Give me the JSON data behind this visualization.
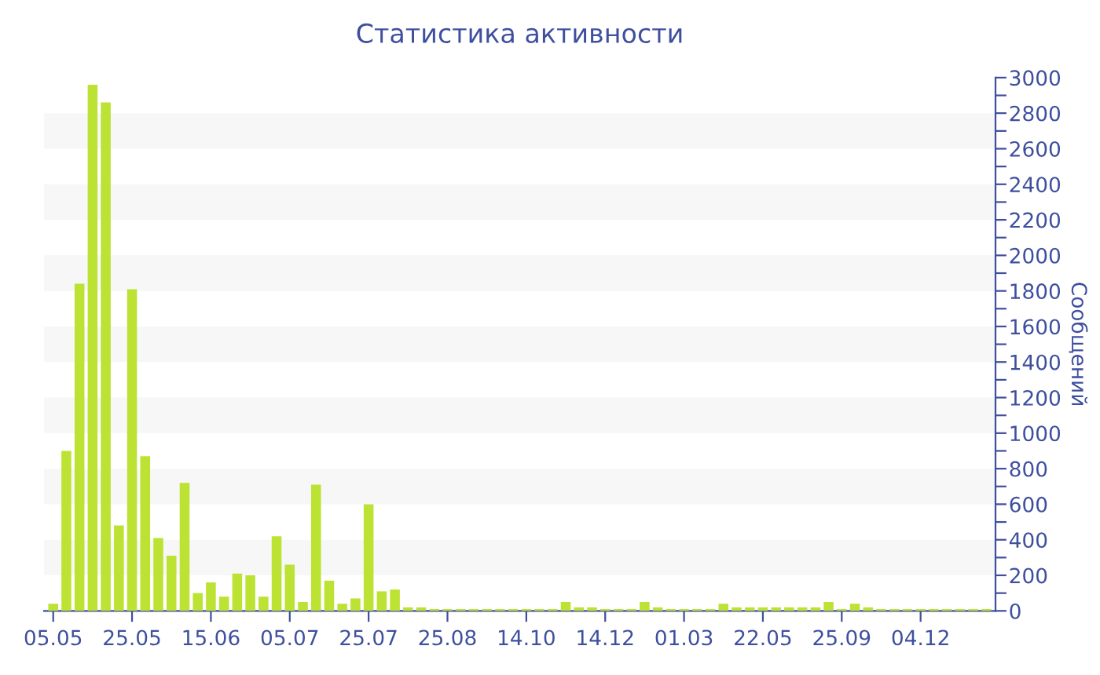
{
  "chart_data": {
    "type": "bar",
    "title": "Статистика активности",
    "ylabel": "Сообщений",
    "categories": [
      "05.05",
      null,
      null,
      null,
      null,
      null,
      "25.05",
      null,
      null,
      null,
      null,
      null,
      "15.06",
      null,
      null,
      null,
      null,
      null,
      "05.07",
      null,
      null,
      null,
      null,
      null,
      "25.07",
      null,
      null,
      null,
      null,
      null,
      "25.08",
      null,
      null,
      null,
      null,
      null,
      "14.10",
      null,
      null,
      null,
      null,
      null,
      "14.12",
      null,
      null,
      null,
      null,
      null,
      "01.03",
      null,
      null,
      null,
      null,
      null,
      "22.05",
      null,
      null,
      null,
      null,
      null,
      "25.09",
      null,
      null,
      null,
      null,
      null,
      "04.12",
      null,
      null,
      null,
      null,
      null
    ],
    "series": [
      {
        "color": "#bce234",
        "values": [
          40,
          900,
          1840,
          2960,
          2860,
          480,
          1810,
          870,
          410,
          310,
          720,
          100,
          160,
          80,
          210,
          200,
          80,
          420,
          260,
          50,
          710,
          170,
          40,
          70,
          600,
          110,
          120,
          20,
          20,
          10,
          10,
          10,
          10,
          10,
          10,
          10,
          10,
          10,
          10,
          50,
          20,
          20,
          10,
          10,
          10,
          50,
          20,
          10,
          10,
          10,
          10,
          40,
          20,
          20,
          20,
          20,
          20,
          20,
          20,
          50,
          10,
          40,
          20,
          10,
          10,
          10,
          10,
          10,
          10,
          10,
          10,
          10
        ]
      }
    ],
    "ylim": [
      0,
      3000
    ],
    "yticks": [
      0,
      {
        "value": 100,
        "label": null
      },
      200,
      {
        "value": 300,
        "label": null
      },
      400,
      {
        "value": 500,
        "label": null
      },
      600,
      {
        "value": 700,
        "label": null
      },
      800,
      {
        "value": 900,
        "label": null
      },
      1000,
      {
        "value": 1100,
        "label": null
      },
      1200,
      {
        "value": 1300,
        "label": null
      },
      1400,
      {
        "value": 1500,
        "label": null
      },
      1600,
      {
        "value": 1700,
        "label": null
      },
      1800,
      {
        "value": 1900,
        "label": null
      },
      2000,
      {
        "value": 2100,
        "label": null
      },
      2200,
      {
        "value": 2300,
        "label": null
      },
      2400,
      {
        "value": 2500,
        "label": null
      },
      2600,
      {
        "value": 2700,
        "label": null
      },
      2800,
      {
        "value": 2900,
        "label": null
      },
      3000
    ],
    "bands": [
      {
        "axis": "y",
        "from": 200,
        "to": 400,
        "color": "#f7f7f7"
      },
      {
        "axis": "y",
        "from": 600,
        "to": 800,
        "color": "#f7f7f7"
      },
      {
        "axis": "y",
        "from": 1000,
        "to": 1200,
        "color": "#f7f7f7"
      },
      {
        "axis": "y",
        "from": 1400,
        "to": 1600,
        "color": "#f7f7f7"
      },
      {
        "axis": "y",
        "from": 1800,
        "to": 2000,
        "color": "#f7f7f7"
      },
      {
        "axis": "y",
        "from": 2200,
        "to": 2400,
        "color": "#f7f7f7"
      },
      {
        "axis": "y",
        "from": 2600,
        "to": 2800,
        "color": "#f7f7f7"
      }
    ],
    "grid": false
  }
}
